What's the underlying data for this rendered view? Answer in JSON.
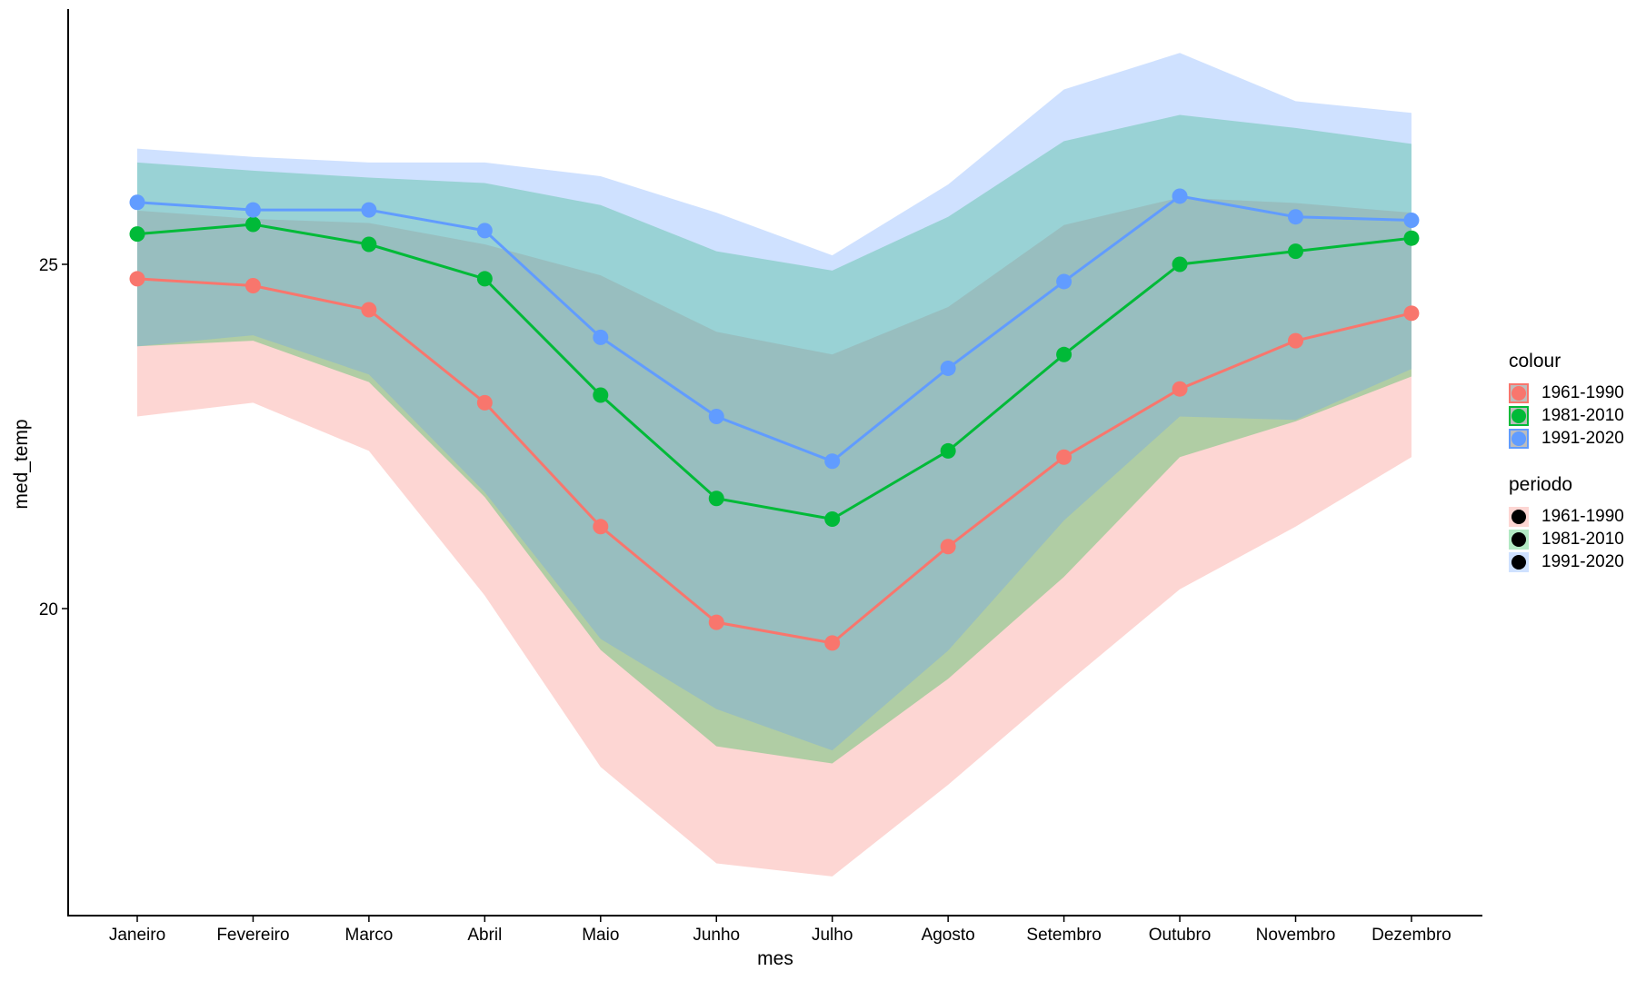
{
  "chart_data": {
    "type": "line",
    "title": "",
    "xlabel": "mes",
    "ylabel": "med_temp",
    "ylim": [
      15.52,
      28.7
    ],
    "yticks": [
      20,
      25
    ],
    "grid": false,
    "categories": [
      "Janeiro",
      "Fevereiro",
      "Marco",
      "Abril",
      "Maio",
      "Junho",
      "Julho",
      "Agosto",
      "Setembro",
      "Outubro",
      "Novembro",
      "Dezembro"
    ],
    "series": [
      {
        "name": "1961-1990",
        "color": "#F8766D",
        "ribbon_color": "#F8766D",
        "values": [
          24.79,
          24.69,
          24.34,
          22.99,
          21.19,
          19.8,
          19.5,
          20.9,
          22.2,
          23.19,
          23.89,
          24.29
        ],
        "ribbon_min": [
          22.79,
          22.99,
          22.29,
          20.19,
          17.7,
          16.3,
          16.11,
          17.44,
          18.88,
          20.28,
          21.19,
          22.2
        ],
        "ribbon_max": [
          25.78,
          25.66,
          25.6,
          25.29,
          24.84,
          24.02,
          23.69,
          24.38,
          25.57,
          25.97,
          25.89,
          25.75
        ]
      },
      {
        "name": "1981-2010",
        "color": "#00BA38",
        "ribbon_color": "#00BA38",
        "values": [
          25.44,
          25.58,
          25.29,
          24.79,
          23.1,
          21.6,
          21.3,
          22.29,
          23.69,
          25.0,
          25.19,
          25.38
        ],
        "ribbon_min": [
          23.81,
          23.89,
          23.29,
          21.62,
          19.4,
          18.0,
          17.75,
          18.98,
          20.46,
          22.2,
          22.72,
          23.37
        ],
        "ribbon_max": [
          26.48,
          26.36,
          26.26,
          26.18,
          25.86,
          25.19,
          24.91,
          25.69,
          26.79,
          27.17,
          26.98,
          26.75
        ]
      },
      {
        "name": "1991-2020",
        "color": "#619CFF",
        "ribbon_color": "#619CFF",
        "values": [
          25.9,
          25.79,
          25.79,
          25.49,
          23.94,
          22.79,
          22.14,
          23.49,
          24.75,
          25.99,
          25.69,
          25.64
        ],
        "ribbon_min": [
          23.81,
          23.97,
          23.4,
          21.69,
          19.56,
          18.54,
          17.94,
          19.39,
          21.28,
          22.79,
          22.74,
          23.48
        ],
        "ribbon_max": [
          26.68,
          26.56,
          26.48,
          26.48,
          26.28,
          25.75,
          25.13,
          26.16,
          27.54,
          28.07,
          27.37,
          27.2
        ]
      }
    ],
    "legends": [
      {
        "title": "colour",
        "placement": "right",
        "items": [
          {
            "label": "1961-1990",
            "color": "#F8766D"
          },
          {
            "label": "1981-2010",
            "color": "#00BA38"
          },
          {
            "label": "1991-2020",
            "color": "#619CFF"
          }
        ]
      },
      {
        "title": "periodo",
        "placement": "right",
        "items": [
          {
            "label": "1961-1990",
            "fill": "#F8766D"
          },
          {
            "label": "1981-2010",
            "fill": "#00BA38"
          },
          {
            "label": "1991-2020",
            "fill": "#619CFF"
          }
        ]
      }
    ]
  }
}
